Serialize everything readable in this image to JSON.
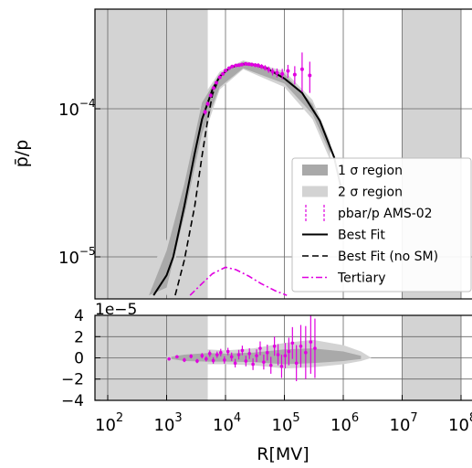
{
  "chart_data": [
    {
      "type": "line",
      "panel": "main",
      "ylabel": "p̄/p",
      "y_scale": "log",
      "x_scale": "log",
      "xlim": [
        10,
        100000000
      ],
      "ylim": [
        5.5e-06,
        0.0005
      ],
      "y_ticks": [
        {
          "value": 0.0001,
          "base": "10",
          "exp": "−4"
        },
        {
          "value": 1e-05,
          "base": "10",
          "exp": "−5"
        }
      ],
      "grid": true,
      "shaded_x_ranges_mv": [
        [
          40,
          1000
        ],
        [
          1000,
          5000
        ],
        [
          10000000,
          100000000
        ]
      ],
      "colors": {
        "sigma1": "#a9a9a9",
        "sigma2": "#d3d3d3",
        "data": "#e000e0",
        "best_fit": "#000000",
        "tertiary": "#e000e0"
      },
      "legend_position": "lower-right",
      "legend": [
        {
          "key": "sigma1",
          "label": "1 σ region"
        },
        {
          "key": "sigma2",
          "label": "2 σ region"
        },
        {
          "key": "data",
          "label": "pbar/p AMS-02"
        },
        {
          "key": "best_fit",
          "label": "Best Fit"
        },
        {
          "key": "best_fit_no_sm",
          "label": "Best Fit (no SM)"
        },
        {
          "key": "tertiary",
          "label": "Tertiary"
        }
      ],
      "series": [
        {
          "name": "Best Fit",
          "style": "solid",
          "x": [
            600,
            1000,
            1300,
            2000,
            3000,
            4000,
            6000,
            8000,
            12000,
            20000,
            30000,
            50000,
            100000,
            200000,
            400000,
            700000,
            1000000
          ],
          "y": [
            5.5e-06,
            7.5e-06,
            1e-05,
            2.2e-05,
            5e-05,
            8.5e-05,
            0.000135,
            0.000165,
            0.00019,
            0.0002,
            0.000198,
            0.000188,
            0.00016,
            0.000128,
            8.3e-05,
            4.7e-05,
            2.5e-05
          ]
        },
        {
          "name": "Best Fit (no SM)",
          "style": "dashed",
          "x": [
            1400,
            2000,
            3000,
            4000,
            5000,
            6000,
            8000,
            12000,
            20000,
            30000
          ],
          "y": [
            5.5e-06,
            9.5e-06,
            2.2e-05,
            4.8e-05,
            8.5e-05,
            0.000125,
            0.000165,
            0.00019,
            0.0002,
            0.000198
          ]
        },
        {
          "name": "Tertiary",
          "style": "dashdot",
          "x": [
            2500,
            4000,
            6000,
            10000,
            15000,
            25000,
            40000,
            70000,
            110000
          ],
          "y": [
            5.5e-06,
            6.6e-06,
            7.7e-06,
            8.5e-06,
            8.2e-06,
            7.4e-06,
            6.6e-06,
            5.9e-06,
            5.5e-06
          ]
        }
      ],
      "sigma2_band": {
        "x": [
          300,
          1000,
          2000,
          4000,
          8000,
          20000,
          100000,
          300000,
          600000
        ],
        "lower": [
          5.5e-06,
          5.5e-06,
          1.7e-05,
          6e-05,
          0.000135,
          0.000185,
          0.00014,
          8.5e-05,
          4.5e-05
        ],
        "upper": [
          5.5e-06,
          1.3e-05,
          3.6e-05,
          0.000118,
          0.000178,
          0.000212,
          0.00018,
          0.000115,
          6e-05
        ]
      },
      "sigma1_band": {
        "x": [
          500,
          1000,
          2000,
          4000,
          8000,
          20000,
          100000,
          300000,
          600000
        ],
        "lower": [
          5.5e-06,
          6.2e-06,
          1.9e-05,
          6.8e-05,
          0.00014,
          0.000188,
          0.000148,
          9.2e-05,
          5e-05
        ],
        "upper": [
          5.5e-06,
          1.1e-05,
          3.1e-05,
          0.00011,
          0.000172,
          0.000208,
          0.000172,
          0.000108,
          5.6e-05
        ]
      },
      "data_points": {
        "name": "pbar/p AMS-02",
        "x": [
          4500,
          5000,
          5600,
          6300,
          7000,
          8000,
          9000,
          10000,
          11500,
          13000,
          15000,
          17000,
          19000,
          22000,
          25000,
          28000,
          32000,
          36000,
          41000,
          47000,
          54000,
          63000,
          75000,
          92000,
          115000,
          150000,
          200000,
          270000
        ],
        "y": [
          9.5e-05,
          0.000108,
          0.000123,
          0.000138,
          0.00015,
          0.000163,
          0.000172,
          0.000181,
          0.000188,
          0.000193,
          0.000196,
          0.000197,
          0.000199,
          0.000201,
          0.0002,
          0.000199,
          0.000197,
          0.000196,
          0.000193,
          0.000189,
          0.000184,
          0.000178,
          0.000175,
          0.000172,
          0.00018,
          0.00017,
          0.000185,
          0.000168
        ],
        "err": [
          4e-06,
          4e-06,
          4e-06,
          4e-06,
          4e-06,
          4e-06,
          4e-06,
          4e-06,
          4e-06,
          4e-06,
          4e-06,
          4e-06,
          5e-06,
          5e-06,
          5e-06,
          6e-06,
          6e-06,
          7e-06,
          7e-06,
          8e-06,
          9e-06,
          1e-05,
          1.2e-05,
          1.4e-05,
          1.8e-05,
          2.4e-05,
          5.5e-05,
          4e-05
        ]
      }
    },
    {
      "type": "scatter",
      "panel": "residuals",
      "offset_label": "1e−5",
      "xlabel": "R[MV]",
      "x_scale": "log",
      "xlim": [
        10,
        100000000
      ],
      "ylim": [
        -4,
        4
      ],
      "y_ticks": [
        "4",
        "2",
        "0",
        "−2",
        "−4"
      ],
      "y_tick_values": [
        4,
        2,
        0,
        -2,
        -4
      ],
      "x_ticks": [
        {
          "value": 100,
          "base": "10",
          "exp": "2"
        },
        {
          "value": 1000,
          "base": "10",
          "exp": "3"
        },
        {
          "value": 10000,
          "base": "10",
          "exp": "4"
        },
        {
          "value": 100000,
          "base": "10",
          "exp": "5"
        },
        {
          "value": 1000000,
          "base": "10",
          "exp": "6"
        },
        {
          "value": 10000000,
          "base": "10",
          "exp": "7"
        },
        {
          "value": 100000000,
          "base": "10",
          "exp": "8"
        }
      ],
      "grid": true,
      "sigma2_band": {
        "x": [
          1000,
          2000,
          5000,
          10000,
          30000,
          100000,
          300000,
          1000000,
          2000000,
          3000000
        ],
        "lower": [
          -0.2,
          -0.5,
          -0.6,
          -0.6,
          -0.7,
          -1.0,
          -0.9,
          -0.6,
          -0.3,
          0
        ],
        "upper": [
          0.2,
          0.5,
          0.8,
          0.7,
          0.9,
          1.4,
          1.7,
          1.2,
          0.6,
          0
        ]
      },
      "sigma1_band": {
        "x": [
          1200,
          2000,
          5000,
          10000,
          30000,
          100000,
          300000,
          1000000,
          2000000
        ],
        "lower": [
          -0.1,
          -0.3,
          -0.35,
          -0.35,
          -0.4,
          -0.6,
          -0.5,
          -0.3,
          -0.1
        ],
        "upper": [
          0.1,
          0.3,
          0.45,
          0.4,
          0.5,
          0.8,
          0.9,
          0.6,
          0.2
        ]
      },
      "points": {
        "x": [
          1100,
          1500,
          2000,
          2600,
          3300,
          4000,
          4700,
          5400,
          6200,
          7200,
          8300,
          9600,
          11000,
          12700,
          14600,
          16800,
          19300,
          22200,
          25500,
          29300,
          33700,
          38800,
          44600,
          51300,
          59000,
          67800,
          78000,
          89700,
          103000,
          119000,
          137000,
          160000,
          190000,
          230000,
          280000,
          330000
        ],
        "y": [
          -0.1,
          0.1,
          -0.2,
          0.15,
          -0.3,
          0.2,
          -0.1,
          0.4,
          -0.25,
          0.3,
          0.5,
          -0.2,
          0.6,
          0.1,
          -0.5,
          0.3,
          0.7,
          -0.3,
          0.4,
          -0.6,
          0.2,
          0.9,
          -0.4,
          0.5,
          -0.7,
          1.1,
          0.3,
          -0.8,
          0.2,
          0.6,
          1.4,
          -0.5,
          1.1,
          0.5,
          1.5,
          0.9
        ],
        "err": [
          0.15,
          0.15,
          0.2,
          0.2,
          0.2,
          0.25,
          0.25,
          0.3,
          0.3,
          0.3,
          0.35,
          0.35,
          0.35,
          0.4,
          0.4,
          0.45,
          0.45,
          0.5,
          0.5,
          0.55,
          0.6,
          0.65,
          0.7,
          0.75,
          0.8,
          0.9,
          1.0,
          1.1,
          1.2,
          1.3,
          1.5,
          1.7,
          2.0,
          2.5,
          3.0,
          2.8
        ]
      }
    }
  ]
}
